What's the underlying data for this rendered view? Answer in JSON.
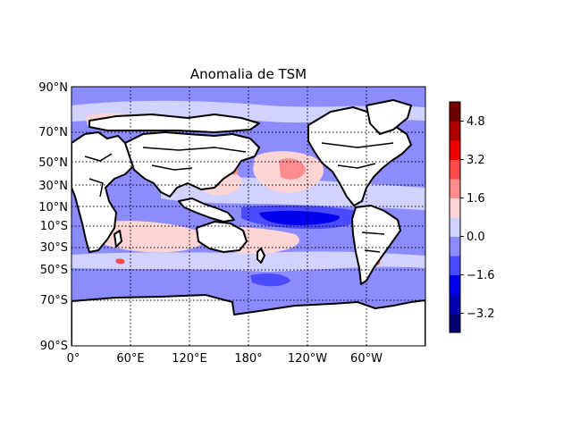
{
  "chart_data": {
    "type": "heatmap",
    "title": "Anomalia de TSM",
    "x_ticks": [
      "0°",
      "60°E",
      "120°E",
      "180°",
      "120°W",
      "60°W"
    ],
    "y_ticks": [
      "90°N",
      "70°N",
      "50°N",
      "30°N",
      "10°N",
      "10°S",
      "30°S",
      "50°S",
      "70°S",
      "90°S"
    ],
    "colorbar_ticks": [
      "4.8",
      "3.2",
      "1.6",
      "0.0",
      "−1.6",
      "−3.2"
    ],
    "colorbar_ticks_values": [
      4.8,
      3.2,
      1.6,
      0.0,
      -1.6,
      -3.2
    ],
    "colorbar_range": [
      -4.0,
      5.6
    ],
    "colorbar_levels": [
      -4.0,
      -3.2,
      -2.4,
      -1.6,
      -0.8,
      0.0,
      0.8,
      1.6,
      2.4,
      3.2,
      4.0,
      4.8,
      5.6
    ],
    "colorbar_colors": [
      "#00006e",
      "#0000ad",
      "#0000ee",
      "#4a4aff",
      "#8c8cff",
      "#d2d2ff",
      "#ffd4d4",
      "#ff8c8c",
      "#ff4a4a",
      "#ee0000",
      "#ae0000",
      "#6e0000"
    ],
    "grid": true,
    "grid_style": "dotted",
    "land_color": "#ffffff",
    "coastline_color": "#000000",
    "background_anomaly_color": "#8c8cff"
  }
}
